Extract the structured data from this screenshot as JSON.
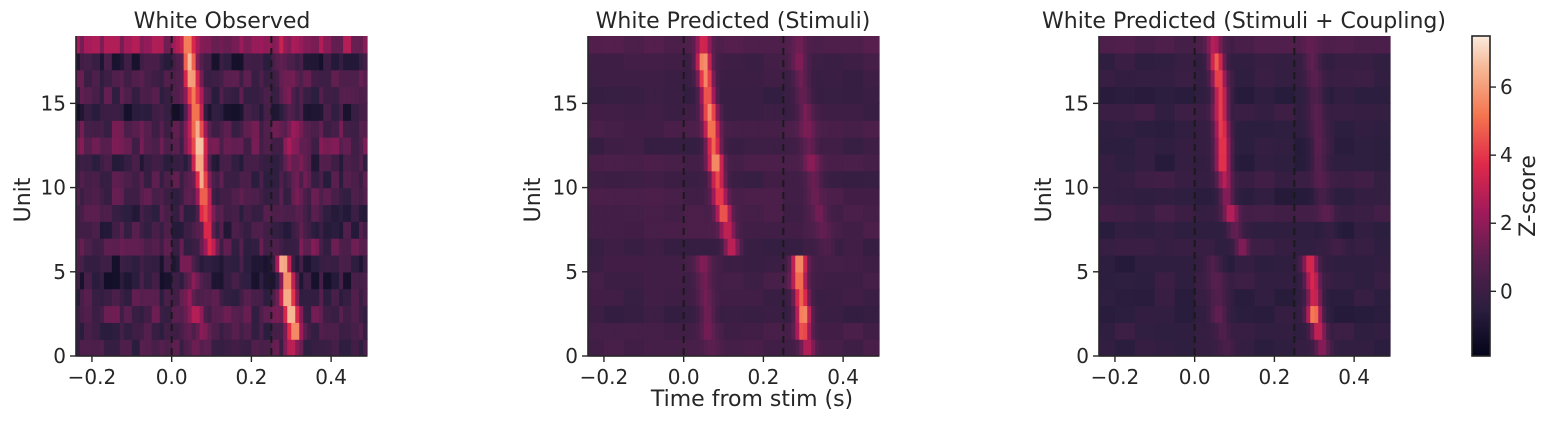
{
  "chart_data": {
    "type": "heatmap",
    "shared_xlabel": "Time from stim (s)",
    "time_range": [
      -0.24,
      0.49
    ],
    "unit_range": [
      0,
      19
    ],
    "stim_lines": [
      0.0,
      0.25
    ],
    "panels": [
      {
        "title": "White Observed",
        "ylabel": "Unit",
        "xticks": [
          -0.2,
          0.0,
          0.2,
          0.4
        ],
        "xtick_labels": [
          "−0.2",
          "0.0",
          "0.2",
          "0.4"
        ],
        "yticks": [
          0,
          5,
          10,
          15
        ],
        "ytick_labels": [
          "0",
          "5",
          "10",
          "15"
        ],
        "response_onset_s": [
          0.3,
          0.31,
          0.3,
          0.29,
          0.29,
          0.28,
          0.1,
          0.09,
          0.085,
          0.08,
          0.075,
          0.07,
          0.068,
          0.065,
          0.06,
          0.055,
          0.05,
          0.045,
          0.04
        ],
        "peak_z": [
          2.5,
          6.0,
          7.0,
          6.5,
          6.0,
          7.2,
          3.5,
          3.0,
          4.0,
          4.0,
          5.5,
          7.0,
          6.5,
          5.5,
          5.5,
          5.0,
          6.0,
          7.0,
          3.0
        ],
        "background": "noisy"
      },
      {
        "title": "White Predicted (Stimuli)",
        "ylabel": "Unit",
        "xticks": [
          -0.2,
          0.0,
          0.2,
          0.4
        ],
        "xtick_labels": [
          "−0.2",
          "0.0",
          "0.2",
          "0.4"
        ],
        "yticks": [
          0,
          5,
          10,
          15
        ],
        "ytick_labels": [
          "0",
          "5",
          "10",
          "15"
        ],
        "response_onset_s": [
          0.31,
          0.3,
          0.3,
          0.295,
          0.29,
          0.29,
          0.12,
          0.11,
          0.1,
          0.09,
          0.085,
          0.08,
          0.075,
          0.07,
          0.065,
          0.06,
          0.055,
          0.05,
          0.05
        ],
        "peak_z": [
          2.5,
          4.5,
          6.0,
          5.0,
          5.0,
          6.0,
          3.0,
          3.0,
          4.5,
          4.0,
          4.5,
          5.5,
          5.0,
          5.0,
          5.5,
          5.0,
          5.5,
          6.0,
          3.0
        ],
        "background": "smooth"
      },
      {
        "title": "White Predicted (Stimuli + Coupling)",
        "ylabel": "Unit",
        "xticks": [
          -0.2,
          0.0,
          0.2,
          0.4
        ],
        "xtick_labels": [
          "−0.2",
          "0.0",
          "0.2",
          "0.4"
        ],
        "yticks": [
          0,
          5,
          10,
          15
        ],
        "ytick_labels": [
          "0",
          "5",
          "10",
          "15"
        ],
        "response_onset_s": [
          0.32,
          0.31,
          0.3,
          0.3,
          0.295,
          0.29,
          0.12,
          0.1,
          0.09,
          0.08,
          0.075,
          0.07,
          0.07,
          0.068,
          0.065,
          0.065,
          0.06,
          0.055,
          0.05
        ],
        "peak_z": [
          2.0,
          3.5,
          6.0,
          4.0,
          4.0,
          4.0,
          2.0,
          1.5,
          3.0,
          2.5,
          3.0,
          4.5,
          4.5,
          4.5,
          4.5,
          4.5,
          4.5,
          5.0,
          2.5
        ],
        "background": "smooth-dark"
      }
    ],
    "colorbar": {
      "label": "Z-score",
      "colormap": "rocket",
      "range": [
        -1.9,
        7.5
      ],
      "ticks": [
        0,
        2,
        4,
        6
      ],
      "tick_labels": [
        "0",
        "2",
        "4",
        "6"
      ]
    }
  }
}
